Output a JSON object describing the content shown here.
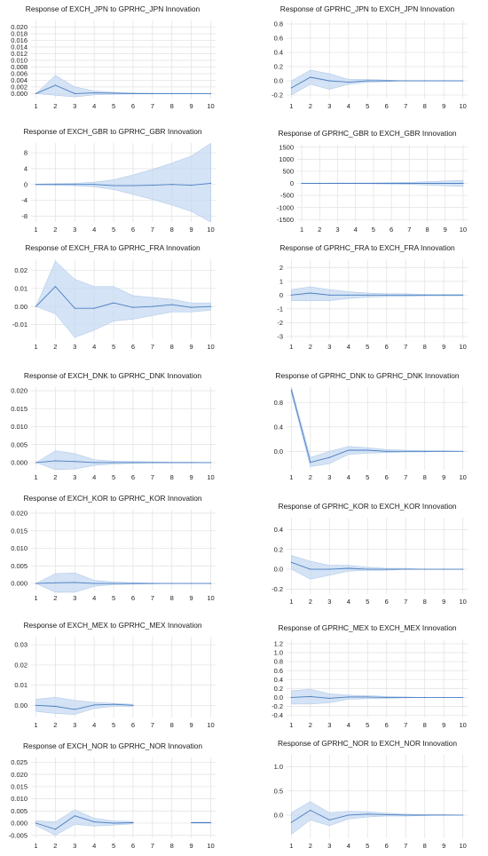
{
  "chart_data": [
    {
      "type": "area",
      "title": "Response of EXCH_JPN to GPRHC_JPN Innovation",
      "x": [
        1,
        2,
        3,
        4,
        5,
        6,
        7,
        8,
        9,
        10
      ],
      "y_ticks": [
        "0.000",
        "0.002",
        "0.004",
        "0.006",
        "0.008",
        "0.010",
        "0.012",
        "0.014",
        "0.016",
        "0.018",
        "0.020"
      ],
      "ylim": [
        -0.0015,
        0.022
      ],
      "series": [
        {
          "values": [
            0,
            0.0025,
            0,
            0.0002,
            0.0001,
            0,
            0,
            0,
            0,
            0
          ],
          "lower": [
            0,
            -0.0005,
            -0.001,
            -0.0004,
            -0.0002,
            -0.0001,
            -0.0001,
            0,
            0,
            0
          ],
          "upper": [
            0,
            0.0055,
            0.002,
            0.0008,
            0.0004,
            0.0002,
            0.0001,
            0.0001,
            0.0001,
            0
          ]
        }
      ]
    },
    {
      "type": "area",
      "title": "Response of GPRHC_JPN to EXCH_JPN Innovation",
      "x": [
        1,
        2,
        3,
        4,
        5,
        6,
        7,
        8,
        9,
        10
      ],
      "y_ticks": [
        "-0.2",
        "0.0",
        "0.2",
        "0.4",
        "0.6",
        "0.8"
      ],
      "ylim": [
        -0.25,
        0.85
      ],
      "series": [
        {
          "values": [
            -0.1,
            0.05,
            0,
            -0.02,
            0,
            0,
            0,
            0,
            0,
            0
          ],
          "lower": [
            -0.2,
            -0.05,
            -0.12,
            -0.05,
            -0.02,
            -0.01,
            0,
            0,
            0,
            0
          ],
          "upper": [
            0,
            0.15,
            0.1,
            0.02,
            0.02,
            0.01,
            0,
            0,
            0,
            0
          ]
        }
      ]
    },
    {
      "type": "area",
      "title": "Response of EXCH_GBR to GPRHC_GBR Innovation",
      "x": [
        1,
        2,
        3,
        4,
        5,
        6,
        7,
        8,
        9,
        10
      ],
      "y_ticks": [
        "-8",
        "-4",
        "0",
        "4",
        "8"
      ],
      "ylim": [
        -9.5,
        10.5
      ],
      "series": [
        {
          "values": [
            0,
            0,
            0,
            0,
            -0.3,
            -0.3,
            -0.2,
            0,
            -0.2,
            0.3
          ],
          "lower": [
            -0.1,
            -0.2,
            -0.3,
            -0.6,
            -1.3,
            -2.5,
            -3.8,
            -5.2,
            -6.8,
            -9.5
          ],
          "upper": [
            0.1,
            0.2,
            0.3,
            0.6,
            1.2,
            2.4,
            3.8,
            5.4,
            7.2,
            10.4
          ]
        }
      ]
    },
    {
      "type": "area",
      "title": "Response of GPRHC_GBR to EXCH_GBR Innovation",
      "x": [
        1,
        2,
        3,
        4,
        5,
        6,
        7,
        8,
        9,
        10
      ],
      "y_ticks": [
        "-1500",
        "-1000",
        "-500",
        "0",
        "500",
        "1000",
        "1500"
      ],
      "ylim": [
        -1600,
        1600
      ],
      "series": [
        {
          "values": [
            0,
            0,
            0,
            0,
            0,
            0,
            0,
            0,
            0,
            0
          ],
          "lower": [
            -10,
            -10,
            -15,
            -15,
            -20,
            -30,
            -45,
            -70,
            -100,
            -130
          ],
          "upper": [
            10,
            10,
            15,
            15,
            20,
            30,
            45,
            70,
            100,
            130
          ]
        }
      ]
    },
    {
      "type": "area",
      "title": "Response of EXCH_FRA to GPRHC_FRA Innovation",
      "x": [
        1,
        2,
        3,
        4,
        5,
        6,
        7,
        8,
        9,
        10
      ],
      "y_ticks": [
        "-0.01",
        "0.00",
        "0.01",
        "0.02"
      ],
      "ylim": [
        -0.018,
        0.026
      ],
      "series": [
        {
          "values": [
            0,
            0.011,
            -0.001,
            -0.001,
            0.002,
            -0.0005,
            0,
            0.001,
            -0.0005,
            0
          ],
          "lower": [
            0,
            -0.004,
            -0.017,
            -0.013,
            -0.008,
            -0.007,
            -0.005,
            -0.003,
            -0.003,
            -0.002
          ],
          "upper": [
            0,
            0.025,
            0.015,
            0.011,
            0.011,
            0.006,
            0.005,
            0.004,
            0.002,
            0.002
          ]
        }
      ]
    },
    {
      "type": "area",
      "title": "Response of GPRHC_FRA to EXCH_FRA Innovation",
      "x": [
        1,
        2,
        3,
        4,
        5,
        6,
        7,
        8,
        9,
        10
      ],
      "y_ticks": [
        "-3",
        "-2",
        "-1",
        "0",
        "1",
        "2"
      ],
      "ylim": [
        -3.2,
        2.6
      ],
      "series": [
        {
          "values": [
            0,
            0.15,
            0,
            0,
            0,
            0,
            0,
            0,
            0,
            0
          ],
          "lower": [
            -0.4,
            -0.4,
            -0.4,
            -0.25,
            -0.15,
            -0.1,
            -0.1,
            -0.05,
            -0.05,
            -0.05
          ],
          "upper": [
            0.4,
            0.6,
            0.4,
            0.25,
            0.15,
            0.1,
            0.1,
            0.05,
            0.05,
            0.05
          ]
        }
      ]
    },
    {
      "type": "area",
      "title": "Response of EXCH_DNK to GPRHC_DNK Innovation",
      "x": [
        1,
        2,
        3,
        4,
        5,
        6,
        7,
        8,
        9,
        10
      ],
      "y_ticks": [
        "0.000",
        "0.005",
        "0.010",
        "0.015",
        "0.020"
      ],
      "ylim": [
        -0.002,
        0.021
      ],
      "series": [
        {
          "values": [
            0,
            0.0005,
            0.0003,
            0,
            0,
            0,
            0,
            0,
            0,
            0
          ],
          "lower": [
            0,
            -0.002,
            -0.0018,
            -0.0008,
            -0.0004,
            -0.0002,
            -0.0001,
            -0.0001,
            -0.0001,
            0
          ],
          "upper": [
            0,
            0.0033,
            0.0025,
            0.0008,
            0.0004,
            0.0003,
            0.0002,
            0.0001,
            0.0001,
            0
          ]
        }
      ]
    },
    {
      "type": "area",
      "title": "Response of GPRHC_DNK to GPRHC_DNK Innovation",
      "x": [
        1,
        2,
        3,
        4,
        5,
        6,
        7,
        8,
        9,
        10
      ],
      "y_ticks": [
        "0.0",
        "0.4",
        "0.8"
      ],
      "ylim": [
        -0.3,
        1.05
      ],
      "series": [
        {
          "values": [
            1.0,
            -0.18,
            -0.1,
            0.02,
            0.02,
            0,
            0,
            0,
            0,
            0
          ],
          "lower": [
            0.95,
            -0.25,
            -0.2,
            -0.05,
            -0.03,
            -0.02,
            -0.01,
            -0.01,
            0,
            0
          ],
          "upper": [
            1.05,
            -0.1,
            0,
            0.08,
            0.06,
            0.03,
            0.02,
            0.01,
            0.01,
            0
          ]
        }
      ]
    },
    {
      "type": "area",
      "title": "Response of EXCH_KOR to GPRHC_KOR Innovation",
      "x": [
        1,
        2,
        3,
        4,
        5,
        6,
        7,
        8,
        9,
        10
      ],
      "y_ticks": [
        "0.000",
        "0.005",
        "0.010",
        "0.015",
        "0.020"
      ],
      "ylim": [
        -0.002,
        0.021
      ],
      "series": [
        {
          "values": [
            0,
            0.0002,
            0.0003,
            0,
            0,
            0,
            0,
            0,
            0,
            0
          ],
          "lower": [
            0,
            -0.0025,
            -0.0025,
            -0.0008,
            -0.0003,
            -0.0002,
            -0.0001,
            0,
            0,
            0
          ],
          "upper": [
            0,
            0.0028,
            0.003,
            0.0009,
            0.0004,
            0.0002,
            0.0001,
            0,
            0,
            0
          ]
        }
      ]
    },
    {
      "type": "area",
      "title": "Response of GPRHC_KOR to EXCH_KOR Innovation",
      "x": [
        1,
        2,
        3,
        4,
        5,
        6,
        7,
        8,
        9,
        10
      ],
      "y_ticks": [
        "-0.2",
        "0.0",
        "0.2",
        "0.4"
      ],
      "ylim": [
        -0.25,
        0.52
      ],
      "series": [
        {
          "values": [
            0.07,
            0,
            0,
            0.01,
            0,
            0,
            0,
            0,
            0,
            0
          ],
          "lower": [
            0,
            -0.1,
            -0.06,
            -0.02,
            -0.01,
            -0.01,
            0,
            0,
            0,
            0
          ],
          "upper": [
            0.14,
            0.08,
            0.04,
            0.04,
            0.02,
            0.01,
            0.01,
            0,
            0,
            0
          ]
        }
      ]
    },
    {
      "type": "area",
      "title": "Response of EXCH_MEX to GPRHC_MEX Innovation",
      "x": [
        1,
        2,
        3,
        4,
        5,
        6,
        7,
        8,
        9,
        10
      ],
      "y_ticks": [
        "0.00",
        "0.01",
        "0.02",
        "0.03"
      ],
      "ylim": [
        -0.006,
        0.034
      ],
      "series": [
        {
          "values": [
            0,
            -0.0005,
            -0.002,
            0.0002,
            0.0005,
            0,
            null,
            null,
            null,
            null
          ],
          "lower": [
            -0.003,
            -0.004,
            -0.0045,
            -0.0015,
            -0.0005,
            -0.0005,
            null,
            null,
            null,
            null
          ],
          "upper": [
            0.003,
            0.004,
            0.0025,
            0.0015,
            0.001,
            0.0005,
            null,
            null,
            null,
            null
          ]
        }
      ]
    },
    {
      "type": "area",
      "title": "Response of GPRHC_MEX to EXCH_MEX Innovation",
      "x": [
        1,
        2,
        3,
        4,
        5,
        6,
        7,
        8,
        9,
        10
      ],
      "y_ticks": [
        "-0.4",
        "-0.2",
        "0.0",
        "0.2",
        "0.4",
        "0.6",
        "0.8",
        "1.0",
        "1.2"
      ],
      "ylim": [
        -0.45,
        1.3
      ],
      "series": [
        {
          "values": [
            0,
            0.02,
            -0.02,
            0.01,
            0.01,
            0,
            0,
            0,
            0,
            0
          ],
          "lower": [
            -0.15,
            -0.15,
            -0.12,
            -0.04,
            -0.03,
            -0.02,
            -0.01,
            0,
            0,
            0
          ],
          "upper": [
            0.15,
            0.18,
            0.08,
            0.05,
            0.04,
            0.02,
            0.01,
            0,
            0,
            0
          ]
        }
      ]
    },
    {
      "type": "area",
      "title": "Response of EXCH_NOR to GPRHC_NOR Innovation",
      "x": [
        1,
        2,
        3,
        4,
        5,
        6,
        7,
        8,
        9,
        10
      ],
      "y_ticks": [
        "-0.005",
        "0.000",
        "0.005",
        "0.010",
        "0.015",
        "0.020",
        "0.025"
      ],
      "ylim": [
        -0.0062,
        0.027
      ],
      "series": [
        {
          "values": [
            0,
            -0.0025,
            0.003,
            0.0005,
            0,
            0.0002,
            null,
            null,
            0.0002,
            0.0002
          ],
          "lower": [
            -0.001,
            -0.005,
            -0.0005,
            -0.0012,
            -0.0008,
            -0.0003,
            null,
            null,
            0,
            0
          ],
          "upper": [
            0.001,
            0.0005,
            0.0055,
            0.002,
            0.0009,
            0.0007,
            null,
            null,
            0.0004,
            0.0004
          ]
        }
      ]
    },
    {
      "type": "area",
      "title": "Response of GPRHC_NOR to EXCH_NOR Innovation",
      "x": [
        1,
        2,
        3,
        4,
        5,
        6,
        7,
        8,
        9,
        10
      ],
      "y_ticks": [
        "0.0",
        "0.5",
        "1.0"
      ],
      "ylim": [
        -0.48,
        1.25
      ],
      "series": [
        {
          "values": [
            -0.15,
            0.1,
            -0.1,
            0,
            0.02,
            0.01,
            0,
            0,
            0,
            0
          ],
          "lower": [
            -0.4,
            -0.1,
            -0.22,
            -0.08,
            -0.04,
            -0.02,
            -0.02,
            -0.01,
            0,
            0
          ],
          "upper": [
            0.05,
            0.28,
            0.05,
            0.08,
            0.07,
            0.04,
            0.02,
            0.01,
            0.01,
            0
          ]
        }
      ]
    }
  ]
}
